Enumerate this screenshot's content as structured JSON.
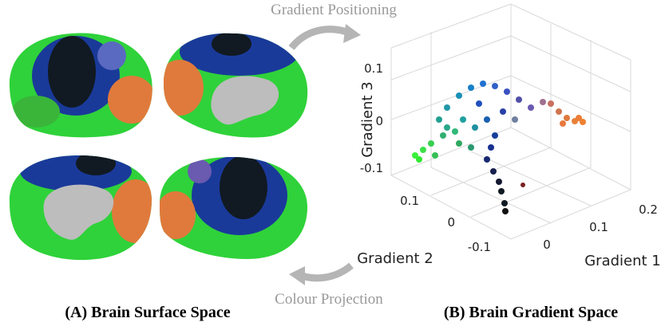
{
  "header": {
    "top_arrow_label": "Gradient Positioning",
    "bottom_arrow_label": "Colour Projection"
  },
  "panels": [
    {
      "caption": "(A) Brain Surface Space"
    },
    {
      "caption": "(B) Brain Gradient Space",
      "axes": {
        "z": {
          "label": "Gradient 3",
          "ticks": [
            "0.1",
            "0",
            "-0.1"
          ]
        },
        "y": {
          "label": "Gradient 2",
          "ticks": [
            "0.1",
            "0",
            "-0.1"
          ]
        },
        "x": {
          "label": "Gradient 1",
          "ticks": [
            "0",
            "0.1",
            "0.2"
          ]
        }
      }
    }
  ]
}
